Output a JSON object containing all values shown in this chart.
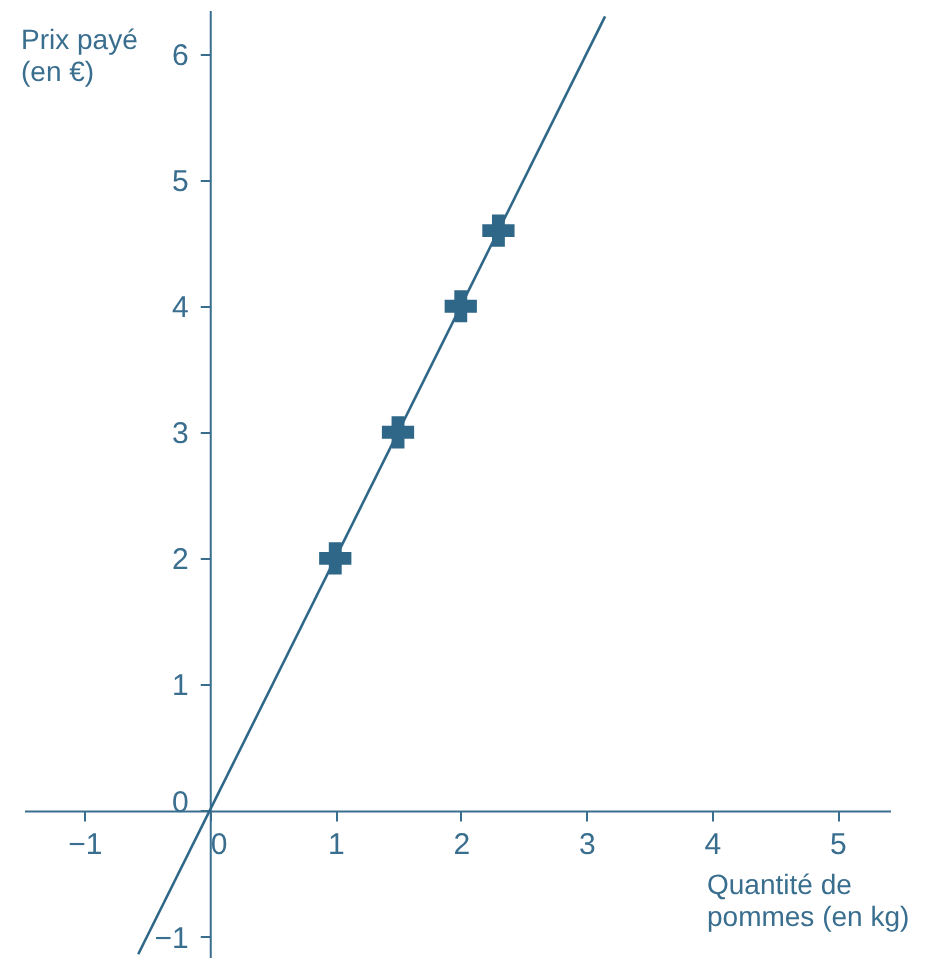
{
  "chart_data": {
    "type": "scatter",
    "xlabel": "Quantité de\npommes (en kg)",
    "ylabel": "Prix payé\n(en €)",
    "xlim": [
      -1.48,
      5.42
    ],
    "ylim": [
      -1.17,
      6.35
    ],
    "xticks": [
      -1,
      0,
      1,
      2,
      3,
      4,
      5
    ],
    "yticks": [
      -1,
      0,
      1,
      2,
      3,
      4,
      5,
      6
    ],
    "grid": false,
    "series": [
      {
        "type": "line",
        "color": "#2f6788",
        "x": [
          -0.57,
          3.15
        ],
        "values": [
          -1.14,
          6.3
        ],
        "line_style": "solid",
        "marker": "none"
      },
      {
        "color": "#2f6788",
        "x": [
          1,
          1.5,
          2,
          2.3
        ],
        "values": [
          2,
          3,
          4,
          4.6
        ],
        "marker": "cross"
      }
    ]
  }
}
